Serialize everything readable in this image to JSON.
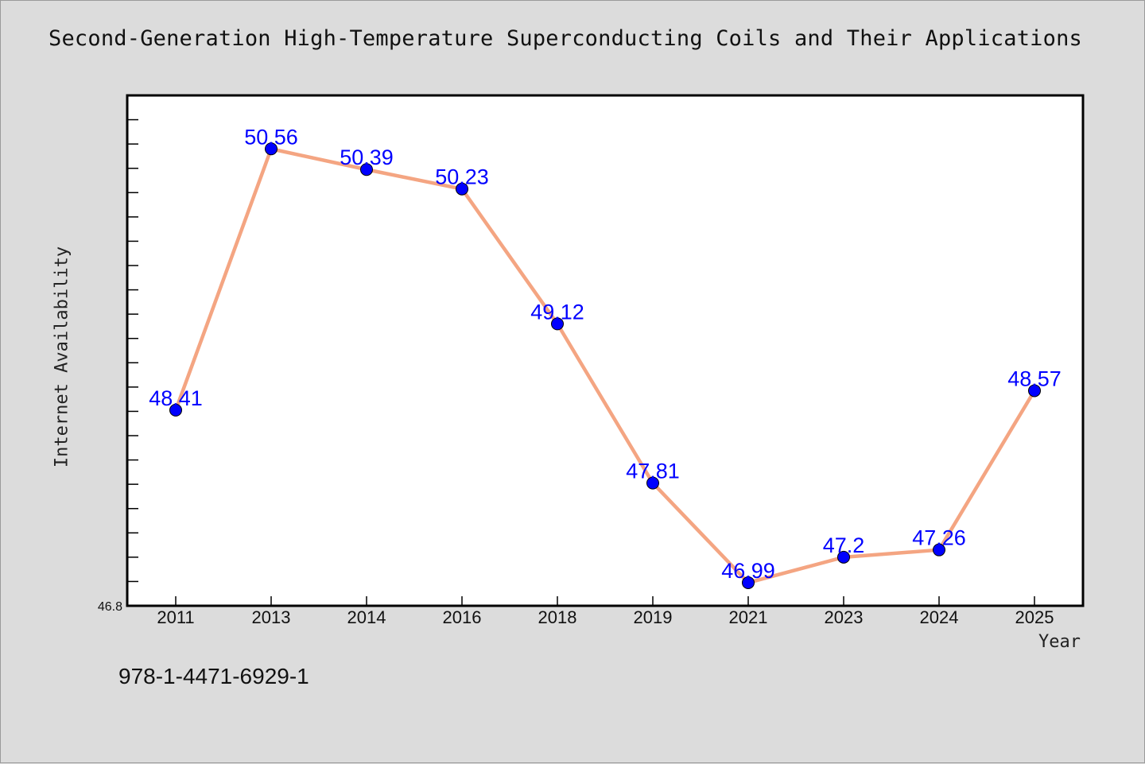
{
  "chart_data": {
    "type": "line",
    "title": "Second-Generation High-Temperature Superconducting Coils and Their Applications",
    "xlabel": "Year",
    "ylabel": "Internet Availability",
    "categories": [
      "2011",
      "2013",
      "2014",
      "2016",
      "2018",
      "2019",
      "2021",
      "2023",
      "2024",
      "2025"
    ],
    "series": [
      {
        "values": [
          48.41,
          50.56,
          50.39,
          50.23,
          49.12,
          47.81,
          46.99,
          47.2,
          47.26,
          48.57
        ]
      }
    ],
    "data_labels": [
      "48.41",
      "50.56",
      "50.39",
      "50.23",
      "49.12",
      "47.81",
      "46.99",
      "47.2",
      "47.26",
      "48.57"
    ],
    "ylim": [
      46.8,
      51.0
    ],
    "y_tick_label": "46.8",
    "grid": false,
    "legend": "none",
    "colors": {
      "line": "#f4a582",
      "marker": "#0000ff",
      "data_label": "#0000ff",
      "background": "#dcdcdc",
      "plot_background": "#ffffff"
    }
  },
  "footer": {
    "text": "978-1-4471-6929-1"
  }
}
